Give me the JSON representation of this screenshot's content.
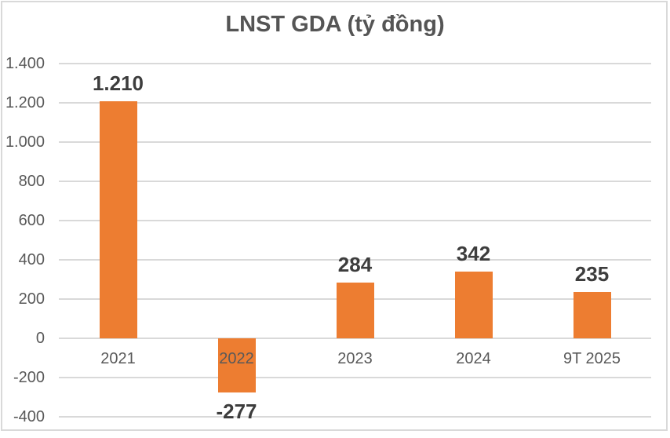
{
  "chart_data": {
    "type": "bar",
    "title": "LNST GDA (tỷ đồng)",
    "categories": [
      "2021",
      "2022",
      "2023",
      "2024",
      "9T 2025"
    ],
    "values": [
      1210,
      -277,
      284,
      342,
      235
    ],
    "value_labels": [
      "1.210",
      "-277",
      "284",
      "342",
      "235"
    ],
    "xlabel": "",
    "ylabel": "",
    "ylim": [
      -400,
      1400
    ],
    "ytick_step": 200,
    "ytick_labels": [
      "-400",
      "-200",
      "0",
      "200",
      "400",
      "600",
      "800",
      "1.000",
      "1.200",
      "1.400"
    ],
    "grid": true,
    "legend": "none",
    "bar_color": "#ED7D31"
  },
  "colors": {
    "bar": "#ED7D31",
    "gridline": "#D9D9D9",
    "border": "#D9D9D9",
    "title_text": "#555555",
    "axis_text": "#595959",
    "data_label_text": "#3d3d3d",
    "background": "#FFFFFF"
  }
}
